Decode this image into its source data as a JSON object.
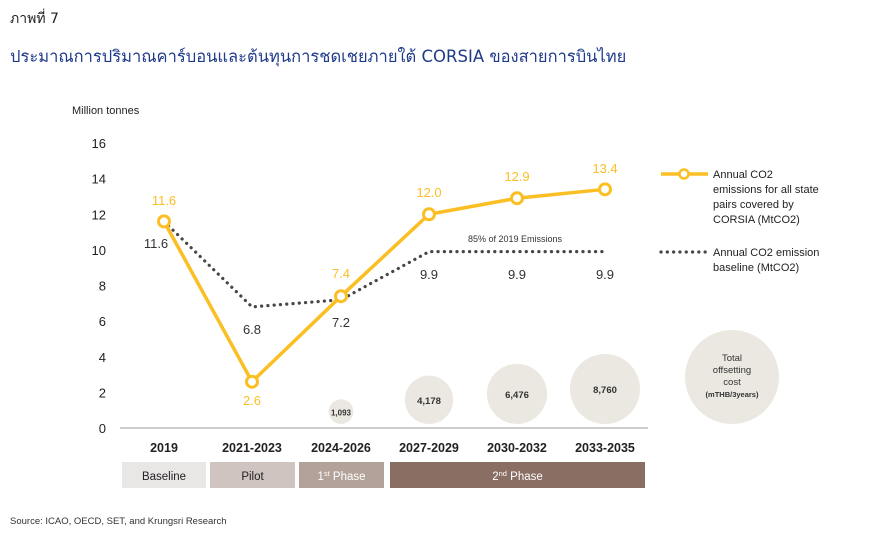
{
  "figure_label": "ภาพที่ 7",
  "title": "ประมาณการปริมาณคาร์บอนและต้นทุนการชดเชยภายใต้ CORSIA ของสายการบินไทย",
  "source": "Source: ICAO, OECD, SET, and Krungsri Research",
  "colors": {
    "emissions": "#fbbf24",
    "baseline": "#4b4646",
    "bubble": "#ebe8e1",
    "phase_baseline": "#e9e6e6",
    "phase_pilot": "#cfc4c0",
    "phase_1": "#b3a29a",
    "phase_2": "#8a6e64"
  },
  "chart_data": {
    "type": "line",
    "ylabel": "Million tonnes",
    "ylim": [
      0,
      16
    ],
    "yticks": [
      "0",
      "2",
      "4",
      "6",
      "8",
      "10",
      "12",
      "14",
      "16"
    ],
    "categories": [
      "2019",
      "2021-2023",
      "2024-2026",
      "2027-2029",
      "2030-2032",
      "2033-2035"
    ],
    "series": [
      {
        "name": "Annual CO2 emissions for all state pairs covered by CORSIA (MtCO2)",
        "legend_lines": [
          "Annual CO2",
          "emissions for all state",
          "pairs covered by",
          "CORSIA (MtCO2)"
        ],
        "values": [
          11.6,
          2.6,
          7.4,
          12.0,
          12.9,
          13.4
        ],
        "labels": [
          "11.6",
          "2.6",
          "7.4",
          "12.0",
          "12.9",
          "13.4"
        ],
        "style": "solid"
      },
      {
        "name": "Annual CO2 emission baseline (MtCO2)",
        "legend_lines": [
          "Annual CO2 emission",
          "baseline (MtCO2)"
        ],
        "values": [
          11.6,
          6.8,
          7.2,
          9.9,
          9.9,
          9.9
        ],
        "labels": [
          "11.6",
          "6.8",
          "7.2",
          "9.9",
          "9.9",
          "9.9"
        ],
        "style": "dotted"
      }
    ],
    "annotation": "85% of 2019 Emissions",
    "offsetting_cost": {
      "unit": "mTHB/3years",
      "legend_lines": [
        "Total",
        "offsetting",
        "cost",
        "(mTHB/3years)"
      ],
      "values": [
        null,
        null,
        1093,
        4178,
        6476,
        8760
      ],
      "labels": [
        "",
        "",
        "1,093",
        "4,178",
        "6,476",
        "8,760"
      ]
    },
    "phases": [
      {
        "label": "Baseline",
        "sup": "",
        "suffix": ""
      },
      {
        "label": "Pilot",
        "sup": "",
        "suffix": ""
      },
      {
        "label": "1",
        "sup": "st",
        "suffix": " Phase"
      },
      {
        "label": "2",
        "sup": "nd",
        "suffix": " Phase"
      }
    ]
  }
}
